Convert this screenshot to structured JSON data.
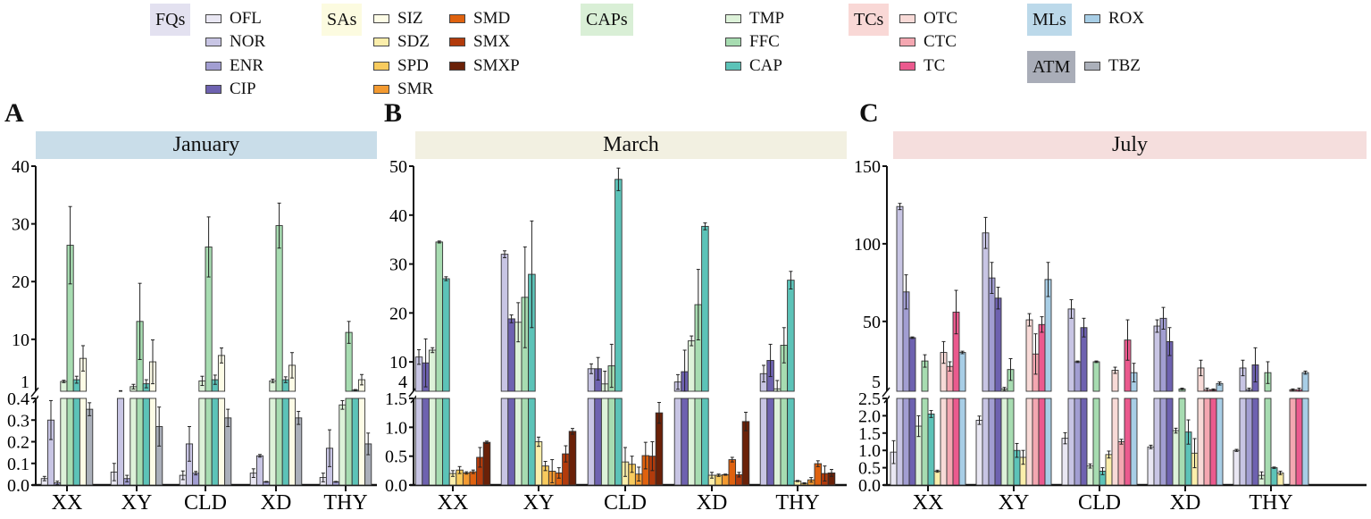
{
  "legend": {
    "groups": [
      {
        "label": "FQs",
        "color": "#e3e1f0",
        "items": [
          "OFL",
          "NOR",
          "ENR",
          "CIP"
        ]
      },
      {
        "label": "SAs",
        "color": "#fcfbe0",
        "items": [
          "SIZ",
          "SDZ",
          "SPD",
          "SMR",
          "SMD",
          "SMX",
          "SMXP"
        ]
      },
      {
        "label": "CAPs",
        "color": "#d9efd6",
        "items": [
          "TMP",
          "FFC",
          "CAP"
        ]
      },
      {
        "label": "TCs",
        "color": "#f9d8d6",
        "items": [
          "OTC",
          "CTC",
          "TC"
        ]
      },
      {
        "label": "MLs",
        "color": "#bcd9ea",
        "items": [
          "ROX"
        ]
      },
      {
        "label": "ATM",
        "color": "#a9adb8",
        "items": [
          "TBZ"
        ]
      }
    ]
  },
  "colors": {
    "OFL": "#e9e7f3",
    "NOR": "#c8c5e4",
    "ENR": "#a29ed2",
    "CIP": "#6e62b0",
    "SIZ": "#fdfce6",
    "SDZ": "#fbeeab",
    "SPD": "#f8cb5e",
    "SMR": "#f39a31",
    "SMD": "#df620f",
    "SMX": "#b23b0c",
    "SMXP": "#6a2108",
    "TMP": "#ddf2d9",
    "FFC": "#a7dcb1",
    "CAP": "#5cc3b8",
    "OTC": "#f8dad7",
    "CTC": "#f4a7b1",
    "TC": "#eb5a8e",
    "ROX": "#a8cee6",
    "TBZ": "#abb0ba"
  },
  "chart_data": [
    {
      "type": "bar",
      "panel": "A",
      "title": "January",
      "title_color": "#c9dde9",
      "categories": [
        "XX",
        "XY",
        "CLD",
        "XD",
        "THY"
      ],
      "y_break": true,
      "lower_ylim": [
        0,
        0.4
      ],
      "upper_ylim": [
        1,
        40
      ],
      "lower_ticks": [
        "0.0",
        "0.1",
        "0.2",
        "0.3",
        "0.4"
      ],
      "upper_ticks": [
        "1",
        "10",
        "20",
        "30",
        "40"
      ],
      "series": [
        {
          "name": "OFL",
          "values": [
            0.03,
            0.06,
            0.045,
            0.055,
            0.035
          ],
          "err": [
            0.01,
            0.04,
            0.02,
            0.02,
            0.02
          ]
        },
        {
          "name": "NOR",
          "values": [
            0.3,
            1.0,
            0.19,
            0.135,
            0.17
          ],
          "err": [
            0.09,
            0.1,
            0.08,
            0.006,
            0.085
          ]
        },
        {
          "name": "ENR",
          "values": [
            0.01,
            0.03,
            0.055,
            0.015,
            0.015
          ],
          "err": [
            0.008,
            0.015,
            0.008,
            0.002,
            0.002
          ]
        },
        {
          "name": "TMP",
          "values": [
            2.7,
            1.8,
            2.8,
            2.8,
            0.37
          ],
          "err": [
            0.2,
            0.4,
            0.8,
            0.3,
            0.02
          ]
        },
        {
          "name": "FFC",
          "values": [
            26.3,
            13.1,
            26.0,
            29.7,
            11.2
          ],
          "err": [
            6.7,
            6.6,
            5.2,
            3.9,
            1.9
          ]
        },
        {
          "name": "CAP",
          "values": [
            3.0,
            2.3,
            3.0,
            3.0,
            1.2
          ],
          "err": [
            0.6,
            0.7,
            0.8,
            0.5,
            0.1
          ]
        },
        {
          "name": "SIZ",
          "values": [
            6.7,
            6.1,
            7.2,
            5.5,
            3.0
          ],
          "err": [
            2.2,
            3.8,
            1.3,
            2.2,
            0.9
          ]
        },
        {
          "name": "TBZ",
          "values": [
            0.35,
            0.27,
            0.31,
            0.31,
            0.19
          ],
          "err": [
            0.03,
            0.09,
            0.04,
            0.03,
            0.05
          ]
        }
      ]
    },
    {
      "type": "bar",
      "panel": "B",
      "title": "March",
      "title_color": "#f2f0e1",
      "categories": [
        "XX",
        "XY",
        "CLD",
        "XD",
        "THY"
      ],
      "y_break": true,
      "lower_ylim": [
        0,
        1.5
      ],
      "upper_ylim": [
        4,
        50
      ],
      "lower_ticks": [
        "0.0",
        "0.5",
        "1.0",
        "1.5"
      ],
      "upper_ticks": [
        "4",
        "10",
        "20",
        "30",
        "40",
        "50"
      ],
      "series": [
        {
          "name": "NOR",
          "values": [
            11.0,
            32.0,
            8.6,
            5.9,
            7.6
          ],
          "err": [
            1.5,
            0.7,
            1.0,
            1.5,
            1.7
          ]
        },
        {
          "name": "CIP",
          "values": [
            9.8,
            18.8,
            8.6,
            8.0,
            10.3
          ],
          "err": [
            4.9,
            0.8,
            2.3,
            4.4,
            3.3
          ]
        },
        {
          "name": "TMP",
          "values": [
            12.4,
            18.1,
            5.5,
            14.3,
            4.5
          ],
          "err": [
            0.5,
            4.0,
            2.6,
            1.0,
            1.7
          ]
        },
        {
          "name": "FFC",
          "values": [
            34.5,
            23.2,
            9.2,
            21.7,
            13.4
          ],
          "err": [
            0.2,
            10.3,
            4.4,
            7.2,
            3.6
          ]
        },
        {
          "name": "CAP",
          "values": [
            27.0,
            27.9,
            47.3,
            37.7,
            26.7
          ],
          "err": [
            0.4,
            10.9,
            2.3,
            0.7,
            1.8
          ]
        },
        {
          "name": "SDZ",
          "values": [
            0.2,
            0.75,
            0.4,
            0.17,
            0.07
          ],
          "err": [
            0.05,
            0.08,
            0.25,
            0.05,
            0.01
          ]
        },
        {
          "name": "SPD",
          "values": [
            0.26,
            0.33,
            0.36,
            0.17,
            0.03
          ],
          "err": [
            0.06,
            0.08,
            0.14,
            0.02,
            0.01
          ]
        },
        {
          "name": "SMR",
          "values": [
            0.21,
            0.24,
            0.19,
            0.18,
            0.09
          ],
          "err": [
            0.02,
            0.2,
            0.12,
            0.01,
            0.04
          ]
        },
        {
          "name": "SMD",
          "values": [
            0.23,
            0.21,
            0.51,
            0.44,
            0.37
          ],
          "err": [
            0.03,
            0.09,
            0.23,
            0.04,
            0.05
          ]
        },
        {
          "name": "SMX",
          "values": [
            0.48,
            0.54,
            0.5,
            0.18,
            0.2
          ],
          "err": [
            0.17,
            0.14,
            0.25,
            0.04,
            0.13
          ]
        },
        {
          "name": "SMXP",
          "values": [
            0.74,
            0.93,
            1.25,
            1.1,
            0.21
          ],
          "err": [
            0.02,
            0.05,
            0.18,
            0.16,
            0.06
          ]
        }
      ]
    },
    {
      "type": "bar",
      "panel": "C",
      "title": "July",
      "title_color": "#f5dedd",
      "categories": [
        "XX",
        "XY",
        "CLD",
        "XD",
        "THY"
      ],
      "y_break": true,
      "lower_ylim": [
        0,
        2.5
      ],
      "upper_ylim": [
        5,
        150
      ],
      "lower_ticks": [
        "0.0",
        "0.5",
        "1.0",
        "1.5",
        "2.0",
        "2.5"
      ],
      "upper_ticks": [
        "5",
        "50",
        "100",
        "150"
      ],
      "series": [
        {
          "name": "OFL",
          "values": [
            0.95,
            1.87,
            1.35,
            1.1,
            1.0
          ],
          "err": [
            0.33,
            0.12,
            0.16,
            0.05,
            0.03
          ]
        },
        {
          "name": "NOR",
          "values": [
            124,
            107,
            58,
            47,
            20
          ],
          "err": [
            2,
            10,
            6,
            4,
            5
          ]
        },
        {
          "name": "ENR",
          "values": [
            69,
            78,
            24,
            52,
            6
          ],
          "err": [
            11,
            10,
            0.5,
            7,
            1
          ]
        },
        {
          "name": "CIP",
          "values": [
            39.5,
            65,
            46,
            37,
            22
          ],
          "err": [
            0.5,
            7,
            6,
            9,
            11
          ]
        },
        {
          "name": "TMP",
          "values": [
            1.7,
            6.5,
            0.55,
            1.57,
            0.28
          ],
          "err": [
            0.3,
            1,
            0.06,
            0.07,
            0.1
          ]
        },
        {
          "name": "FFC",
          "values": [
            24.5,
            19,
            24,
            6.5,
            17
          ],
          "err": [
            4,
            7,
            0.5,
            0.5,
            7
          ]
        },
        {
          "name": "CAP",
          "values": [
            2.05,
            1.0,
            0.4,
            1.53,
            0.5
          ],
          "err": [
            0.1,
            0.2,
            0.1,
            0.35,
            0.02
          ]
        },
        {
          "name": "SDZ",
          "values": [
            0.4,
            0.8,
            0.88,
            0.92,
            0.35
          ],
          "err": [
            0.03,
            0.2,
            0.1,
            0.42,
            0.05
          ]
        },
        {
          "name": "OTC",
          "values": [
            30,
            51,
            18.5,
            20,
            null
          ],
          "err": [
            7,
            4,
            2,
            5,
            null
          ]
        },
        {
          "name": "CTC",
          "values": [
            21,
            29,
            1.25,
            6,
            6
          ],
          "err": [
            3,
            13,
            0.07,
            1,
            0.5
          ]
        },
        {
          "name": "TC",
          "values": [
            56,
            48,
            38,
            6,
            6
          ],
          "err": [
            14,
            5,
            13,
            0.5,
            1
          ]
        },
        {
          "name": "ROX",
          "values": [
            30,
            77,
            17,
            10,
            17
          ],
          "err": [
            0.8,
            11,
            6,
            1,
            1
          ]
        }
      ]
    }
  ]
}
